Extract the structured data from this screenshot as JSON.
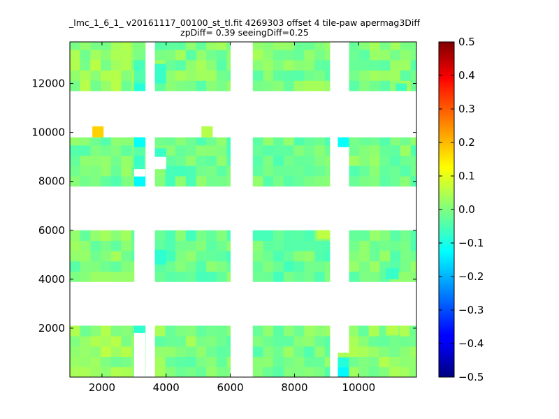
{
  "chart_data": {
    "type": "heatmap",
    "title": "_lmc_1_6_1_ v20161117_00100_st_tl.fit 4269303 offset 4 tile-paw apermag3Diff",
    "subtitle": "zpDiff= 0.39 seeingDiff=0.25",
    "xlabel": "",
    "ylabel": "",
    "xlim": [
      1000,
      11800
    ],
    "ylim": [
      0,
      13700
    ],
    "x_ticks": [
      2000,
      4000,
      6000,
      8000,
      10000
    ],
    "y_ticks": [
      2000,
      4000,
      6000,
      8000,
      10000,
      12000
    ],
    "colorbar": {
      "label": "",
      "colormap": "jet",
      "range": [
        -0.5,
        0.5
      ],
      "ticks": [
        0.5,
        0.4,
        0.3,
        0.2,
        0.1,
        0.0,
        -0.1,
        -0.2,
        -0.3,
        -0.4,
        -0.5
      ],
      "tick_labels": [
        "0.5",
        "0.4",
        "0.3",
        "0.2",
        "0.1",
        "0.0",
        "−0.1",
        "−0.2",
        "−0.3",
        "−0.4",
        "−0.5"
      ]
    },
    "cell_size": [
      320,
      420
    ],
    "blocks": [
      {
        "x": [
          1000,
          3000
        ],
        "y": [
          0,
          2100
        ],
        "base": 0.02
      },
      {
        "x": [
          3000,
          3350
        ],
        "y": [
          0,
          2100
        ],
        "base": 0.0
      },
      {
        "x": [
          3650,
          6000
        ],
        "y": [
          0,
          2100
        ],
        "base": 0.0
      },
      {
        "x": [
          6700,
          9100
        ],
        "y": [
          0,
          2100
        ],
        "base": -0.01
      },
      {
        "x": [
          9350,
          11800
        ],
        "y": [
          0,
          2100
        ],
        "base": 0.01
      },
      {
        "x": [
          1000,
          3000
        ],
        "y": [
          3900,
          6000
        ],
        "base": 0.0
      },
      {
        "x": [
          3650,
          6000
        ],
        "y": [
          3900,
          6000
        ],
        "base": -0.02
      },
      {
        "x": [
          6700,
          9100
        ],
        "y": [
          3900,
          6000
        ],
        "base": -0.02
      },
      {
        "x": [
          9700,
          11800
        ],
        "y": [
          3900,
          6000
        ],
        "base": -0.01
      },
      {
        "x": [
          1000,
          3000
        ],
        "y": [
          7800,
          9800
        ],
        "base": -0.01
      },
      {
        "x": [
          3000,
          3350
        ],
        "y": [
          7800,
          9800
        ],
        "base": -0.05
      },
      {
        "x": [
          3650,
          6000
        ],
        "y": [
          7800,
          9800
        ],
        "base": -0.02
      },
      {
        "x": [
          6700,
          9100
        ],
        "y": [
          7800,
          9800
        ],
        "base": -0.02
      },
      {
        "x": [
          9700,
          11800
        ],
        "y": [
          7800,
          9800
        ],
        "base": -0.01
      },
      {
        "x": [
          1000,
          3000
        ],
        "y": [
          11700,
          13700
        ],
        "base": 0.02
      },
      {
        "x": [
          3000,
          3350
        ],
        "y": [
          11700,
          13700
        ],
        "base": -0.02
      },
      {
        "x": [
          3650,
          6000
        ],
        "y": [
          11700,
          13700
        ],
        "base": 0.0
      },
      {
        "x": [
          6700,
          9100
        ],
        "y": [
          11700,
          13700
        ],
        "base": 0.0
      },
      {
        "x": [
          9700,
          11800
        ],
        "y": [
          11700,
          13700
        ],
        "base": 0.0
      }
    ],
    "gaps": [
      {
        "x": [
          3000,
          3350
        ],
        "y": [
          1000,
          1800
        ]
      },
      {
        "x": [
          3000,
          3350
        ],
        "y": [
          0,
          1000
        ]
      },
      {
        "x": [
          9350,
          9700
        ],
        "y": [
          1000,
          1800
        ]
      },
      {
        "x": [
          9350,
          9700
        ],
        "y": [
          1800,
          2100
        ]
      },
      {
        "x": [
          3000,
          3350
        ],
        "y": [
          8200,
          8500
        ]
      },
      {
        "x": [
          3650,
          4000
        ],
        "y": [
          8500,
          9000
        ]
      }
    ],
    "special_cells": [
      {
        "x": [
          1700,
          2050
        ],
        "y": [
          9800,
          10250
        ],
        "value": 0.17
      },
      {
        "x": [
          5100,
          5450
        ],
        "y": [
          9800,
          10250
        ],
        "value": 0.05
      },
      {
        "x": [
          3000,
          3350
        ],
        "y": [
          9400,
          9800
        ],
        "value": -0.12
      },
      {
        "x": [
          3000,
          3350
        ],
        "y": [
          7800,
          8200
        ],
        "value": -0.13
      },
      {
        "x": [
          9350,
          9700
        ],
        "y": [
          9400,
          9800
        ],
        "value": -0.12
      },
      {
        "x": [
          3000,
          3350
        ],
        "y": [
          11700,
          12000
        ],
        "value": -0.09
      },
      {
        "x": [
          3000,
          3350
        ],
        "y": [
          1800,
          2100
        ],
        "value": -0.08
      },
      {
        "x": [
          9350,
          9700
        ],
        "y": [
          0,
          400
        ],
        "value": -0.13
      },
      {
        "x": [
          9350,
          9700
        ],
        "y": [
          400,
          800
        ],
        "value": -0.09
      },
      {
        "x": [
          8700,
          9100
        ],
        "y": [
          5650,
          6000
        ],
        "value": 0.06
      },
      {
        "x": [
          10850,
          11250
        ],
        "y": [
          1700,
          2100
        ],
        "value": 0.05
      },
      {
        "x": [
          10850,
          11250
        ],
        "y": [
          4000,
          4450
        ],
        "value": -0.07
      },
      {
        "x": [
          11150,
          11500
        ],
        "y": [
          11700,
          12000
        ],
        "value": -0.06
      },
      {
        "x": [
          3650,
          4000
        ],
        "y": [
          12000,
          12800
        ],
        "value": -0.07
      },
      {
        "x": [
          3650,
          4000
        ],
        "y": [
          4600,
          5200
        ],
        "value": -0.08
      },
      {
        "x": [
          3650,
          4000
        ],
        "y": [
          9000,
          9350
        ],
        "value": -0.07
      }
    ]
  }
}
